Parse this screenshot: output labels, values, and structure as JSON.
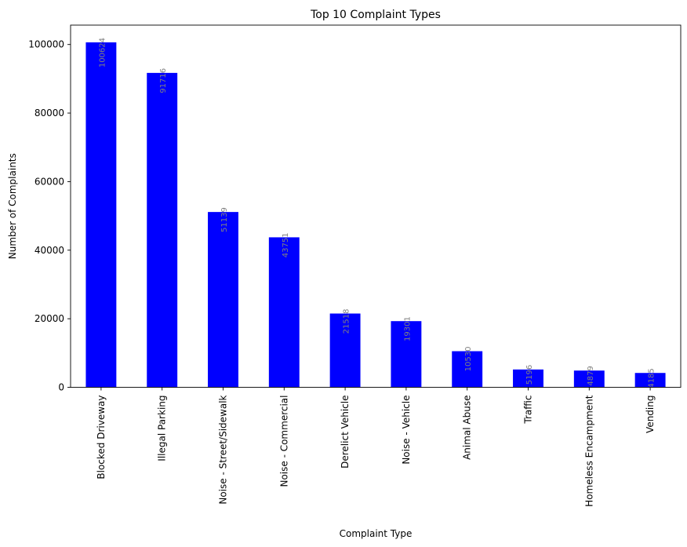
{
  "chart_data": {
    "type": "bar",
    "title": "Top 10 Complaint Types",
    "xlabel": "Complaint Type",
    "ylabel": "Number of Complaints",
    "categories": [
      "Blocked Driveway",
      "Illegal Parking",
      "Noise - Street/Sidewalk",
      "Noise - Commercial",
      "Derelict Vehicle",
      "Noise - Vehicle",
      "Animal Abuse",
      "Traffic",
      "Homeless Encampment",
      "Vending"
    ],
    "values": [
      100624,
      91716,
      51139,
      43751,
      21518,
      19301,
      10530,
      5196,
      4879,
      4185
    ],
    "value_labels": [
      "100624",
      "91716",
      "51139",
      "43751",
      "21518",
      "19301",
      "10530",
      "5196",
      "4879",
      "4185"
    ],
    "yticks": [
      0,
      20000,
      40000,
      60000,
      80000,
      100000
    ],
    "ylim": [
      0,
      105655
    ],
    "bar_color": "#0000ff",
    "label_color": "#808080",
    "grid": false,
    "legend": "none"
  }
}
